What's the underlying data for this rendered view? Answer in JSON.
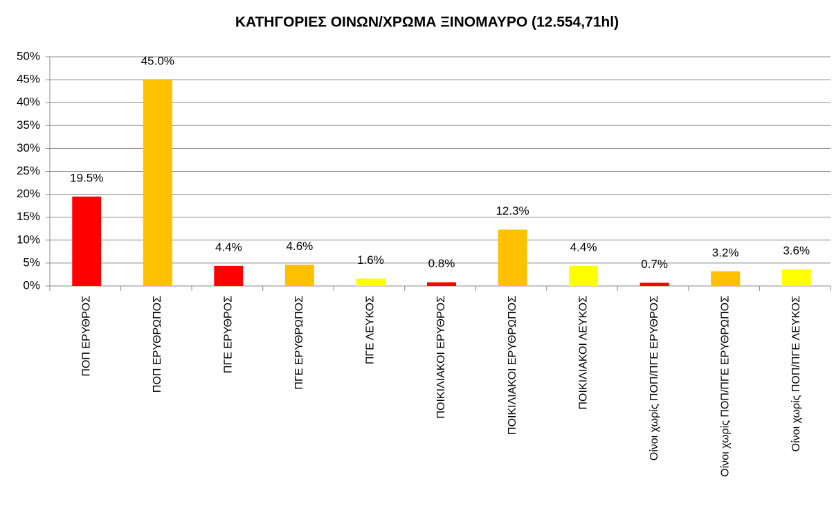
{
  "chart_data": {
    "type": "bar",
    "title": "ΚΑΤΗΓΟΡΙΕΣ ΟΙΝΩΝ/ΧΡΩΜΑ ΞΙΝΟΜΑΥΡΟ (12.554,71hl)",
    "categories": [
      "ΠΟΠ ΕΡΥΘΡΟΣ",
      "ΠΟΠ ΕΡΥΘΡΩΠΟΣ",
      "ΠΓΕ ΕΡΥΘΡΟΣ",
      "ΠΓΕ ΕΡΥΘΡΩΠΟΣ",
      "ΠΓΕ ΛΕΥΚΟΣ",
      "ΠΟΙΚΙΛΙΑΚΟΙ ΕΡΥΘΡΟΣ",
      "ΠΟΙΚΙΛΙΑΚΟΙ ΕΡΥΘΡΩΠΟΣ",
      "ΠΟΙΚΙΛΙΑΚΟΙ ΛΕΥΚΟΣ",
      "Οίνοι χωρίς ΠΟΠ/ΠΓΕ ΕΡΥΘΡΟΣ",
      "Οίνοι χωρίς ΠΟΠ/ΠΓΕ ΕΡΥΘΡΩΠΟΣ",
      "Οίνοι χωρίς ΠΟΠ/ΠΓΕ ΛΕΥΚΟΣ"
    ],
    "values": [
      19.5,
      45.0,
      4.4,
      4.6,
      1.6,
      0.8,
      12.3,
      4.4,
      0.7,
      3.2,
      3.6
    ],
    "value_labels": [
      "19.5%",
      "45.0%",
      "4.4%",
      "4.6%",
      "1.6%",
      "0.8%",
      "12.3%",
      "4.4%",
      "0.7%",
      "3.2%",
      "3.6%"
    ],
    "colors": [
      "#ff0000",
      "#ffc000",
      "#ff0000",
      "#ffc000",
      "#ffff00",
      "#ff0000",
      "#ffc000",
      "#ffff00",
      "#ff0000",
      "#ffc000",
      "#ffff00"
    ],
    "ylim": [
      0,
      50
    ],
    "yticks": [
      {
        "value": 0,
        "label": "0%"
      },
      {
        "value": 5,
        "label": "5%"
      },
      {
        "value": 10,
        "label": "10%"
      },
      {
        "value": 15,
        "label": "15%"
      },
      {
        "value": 20,
        "label": "20%"
      },
      {
        "value": 25,
        "label": "25%"
      },
      {
        "value": 30,
        "label": "30%"
      },
      {
        "value": 35,
        "label": "35%"
      },
      {
        "value": 40,
        "label": "40%"
      },
      {
        "value": 45,
        "label": "45%"
      },
      {
        "value": 50,
        "label": "50%"
      }
    ],
    "grid": true
  }
}
